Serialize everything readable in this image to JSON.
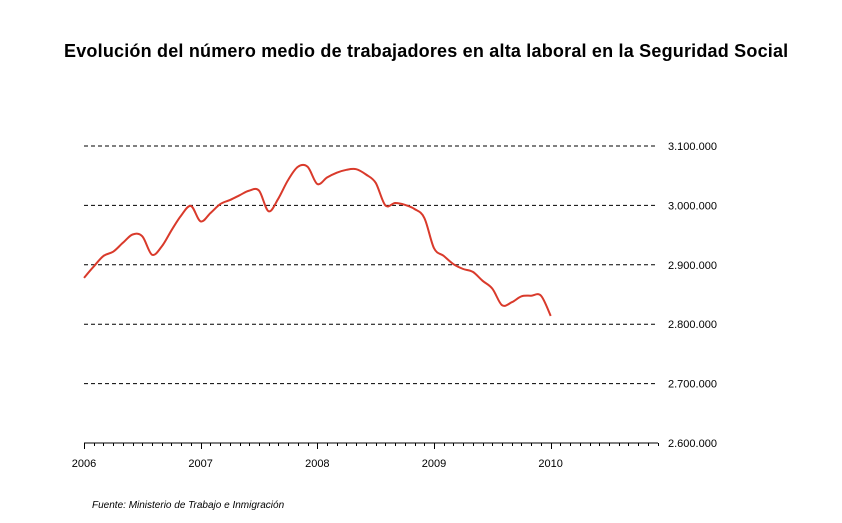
{
  "chart_data": {
    "type": "line",
    "title": "Evolución del número medio de trabajadores en alta laboral en la Seguridad Social",
    "source": "Fuente: Ministerio de Trabajo e Inmigración",
    "xlabel": "",
    "ylabel": "",
    "x_ticks": [
      {
        "value": 2006,
        "label": "2006"
      },
      {
        "value": 2007,
        "label": "2007"
      },
      {
        "value": 2008,
        "label": "2008"
      },
      {
        "value": 2009,
        "label": "2009"
      },
      {
        "value": 2010,
        "label": "2010"
      }
    ],
    "y_ticks": [
      {
        "value": 2600000,
        "label": "2.600.000"
      },
      {
        "value": 2700000,
        "label": "2.700.000"
      },
      {
        "value": 2800000,
        "label": "2.800.000"
      },
      {
        "value": 2900000,
        "label": "2.900.000"
      },
      {
        "value": 3000000,
        "label": "3.000.000"
      },
      {
        "value": 3100000,
        "label": "3.100.000"
      }
    ],
    "xlim": [
      2006,
      2010.92
    ],
    "ylim": [
      2600000,
      3100000
    ],
    "grid": "horizontal dashed",
    "y_axis_side": "right",
    "line_color": "#d93a2b",
    "series": [
      {
        "x": [
          2006.0,
          2006.083,
          2006.167,
          2006.25,
          2006.333,
          2006.417,
          2006.5,
          2006.583,
          2006.667,
          2006.75,
          2006.833,
          2006.917,
          2007.0,
          2007.083,
          2007.167,
          2007.25,
          2007.333,
          2007.417,
          2007.5,
          2007.583,
          2007.667,
          2007.75,
          2007.833,
          2007.917,
          2008.0,
          2008.083,
          2008.167,
          2008.25,
          2008.333,
          2008.417,
          2008.5,
          2008.583,
          2008.667,
          2008.75,
          2008.833,
          2008.917,
          2009.0,
          2009.083,
          2009.167,
          2009.25,
          2009.333,
          2009.417,
          2009.5,
          2009.583,
          2009.667,
          2009.75,
          2009.833,
          2009.917,
          2010.0
        ],
        "y": [
          2878000,
          2897000,
          2915000,
          2922000,
          2937000,
          2951000,
          2948000,
          2917000,
          2931000,
          2958000,
          2983000,
          2999000,
          2973000,
          2987000,
          3002000,
          3009000,
          3017000,
          3025000,
          3025000,
          2990000,
          3012000,
          3043000,
          3065000,
          3065000,
          3036000,
          3047000,
          3055000,
          3060000,
          3061000,
          3052000,
          3038000,
          3000000,
          3004000,
          3001000,
          2994000,
          2979000,
          2928000,
          2915000,
          2901000,
          2893000,
          2888000,
          2873000,
          2860000,
          2832000,
          2837000,
          2847000,
          2848000,
          2848000,
          2814000
        ]
      }
    ]
  }
}
